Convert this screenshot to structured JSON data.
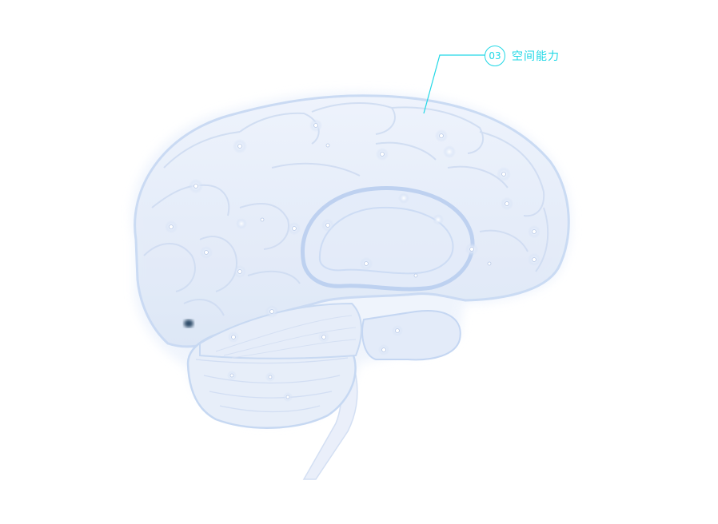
{
  "callout": {
    "number": "03",
    "label": "空间能力",
    "color": "#22d8e6"
  },
  "illustration": {
    "subject": "brain-icon"
  }
}
